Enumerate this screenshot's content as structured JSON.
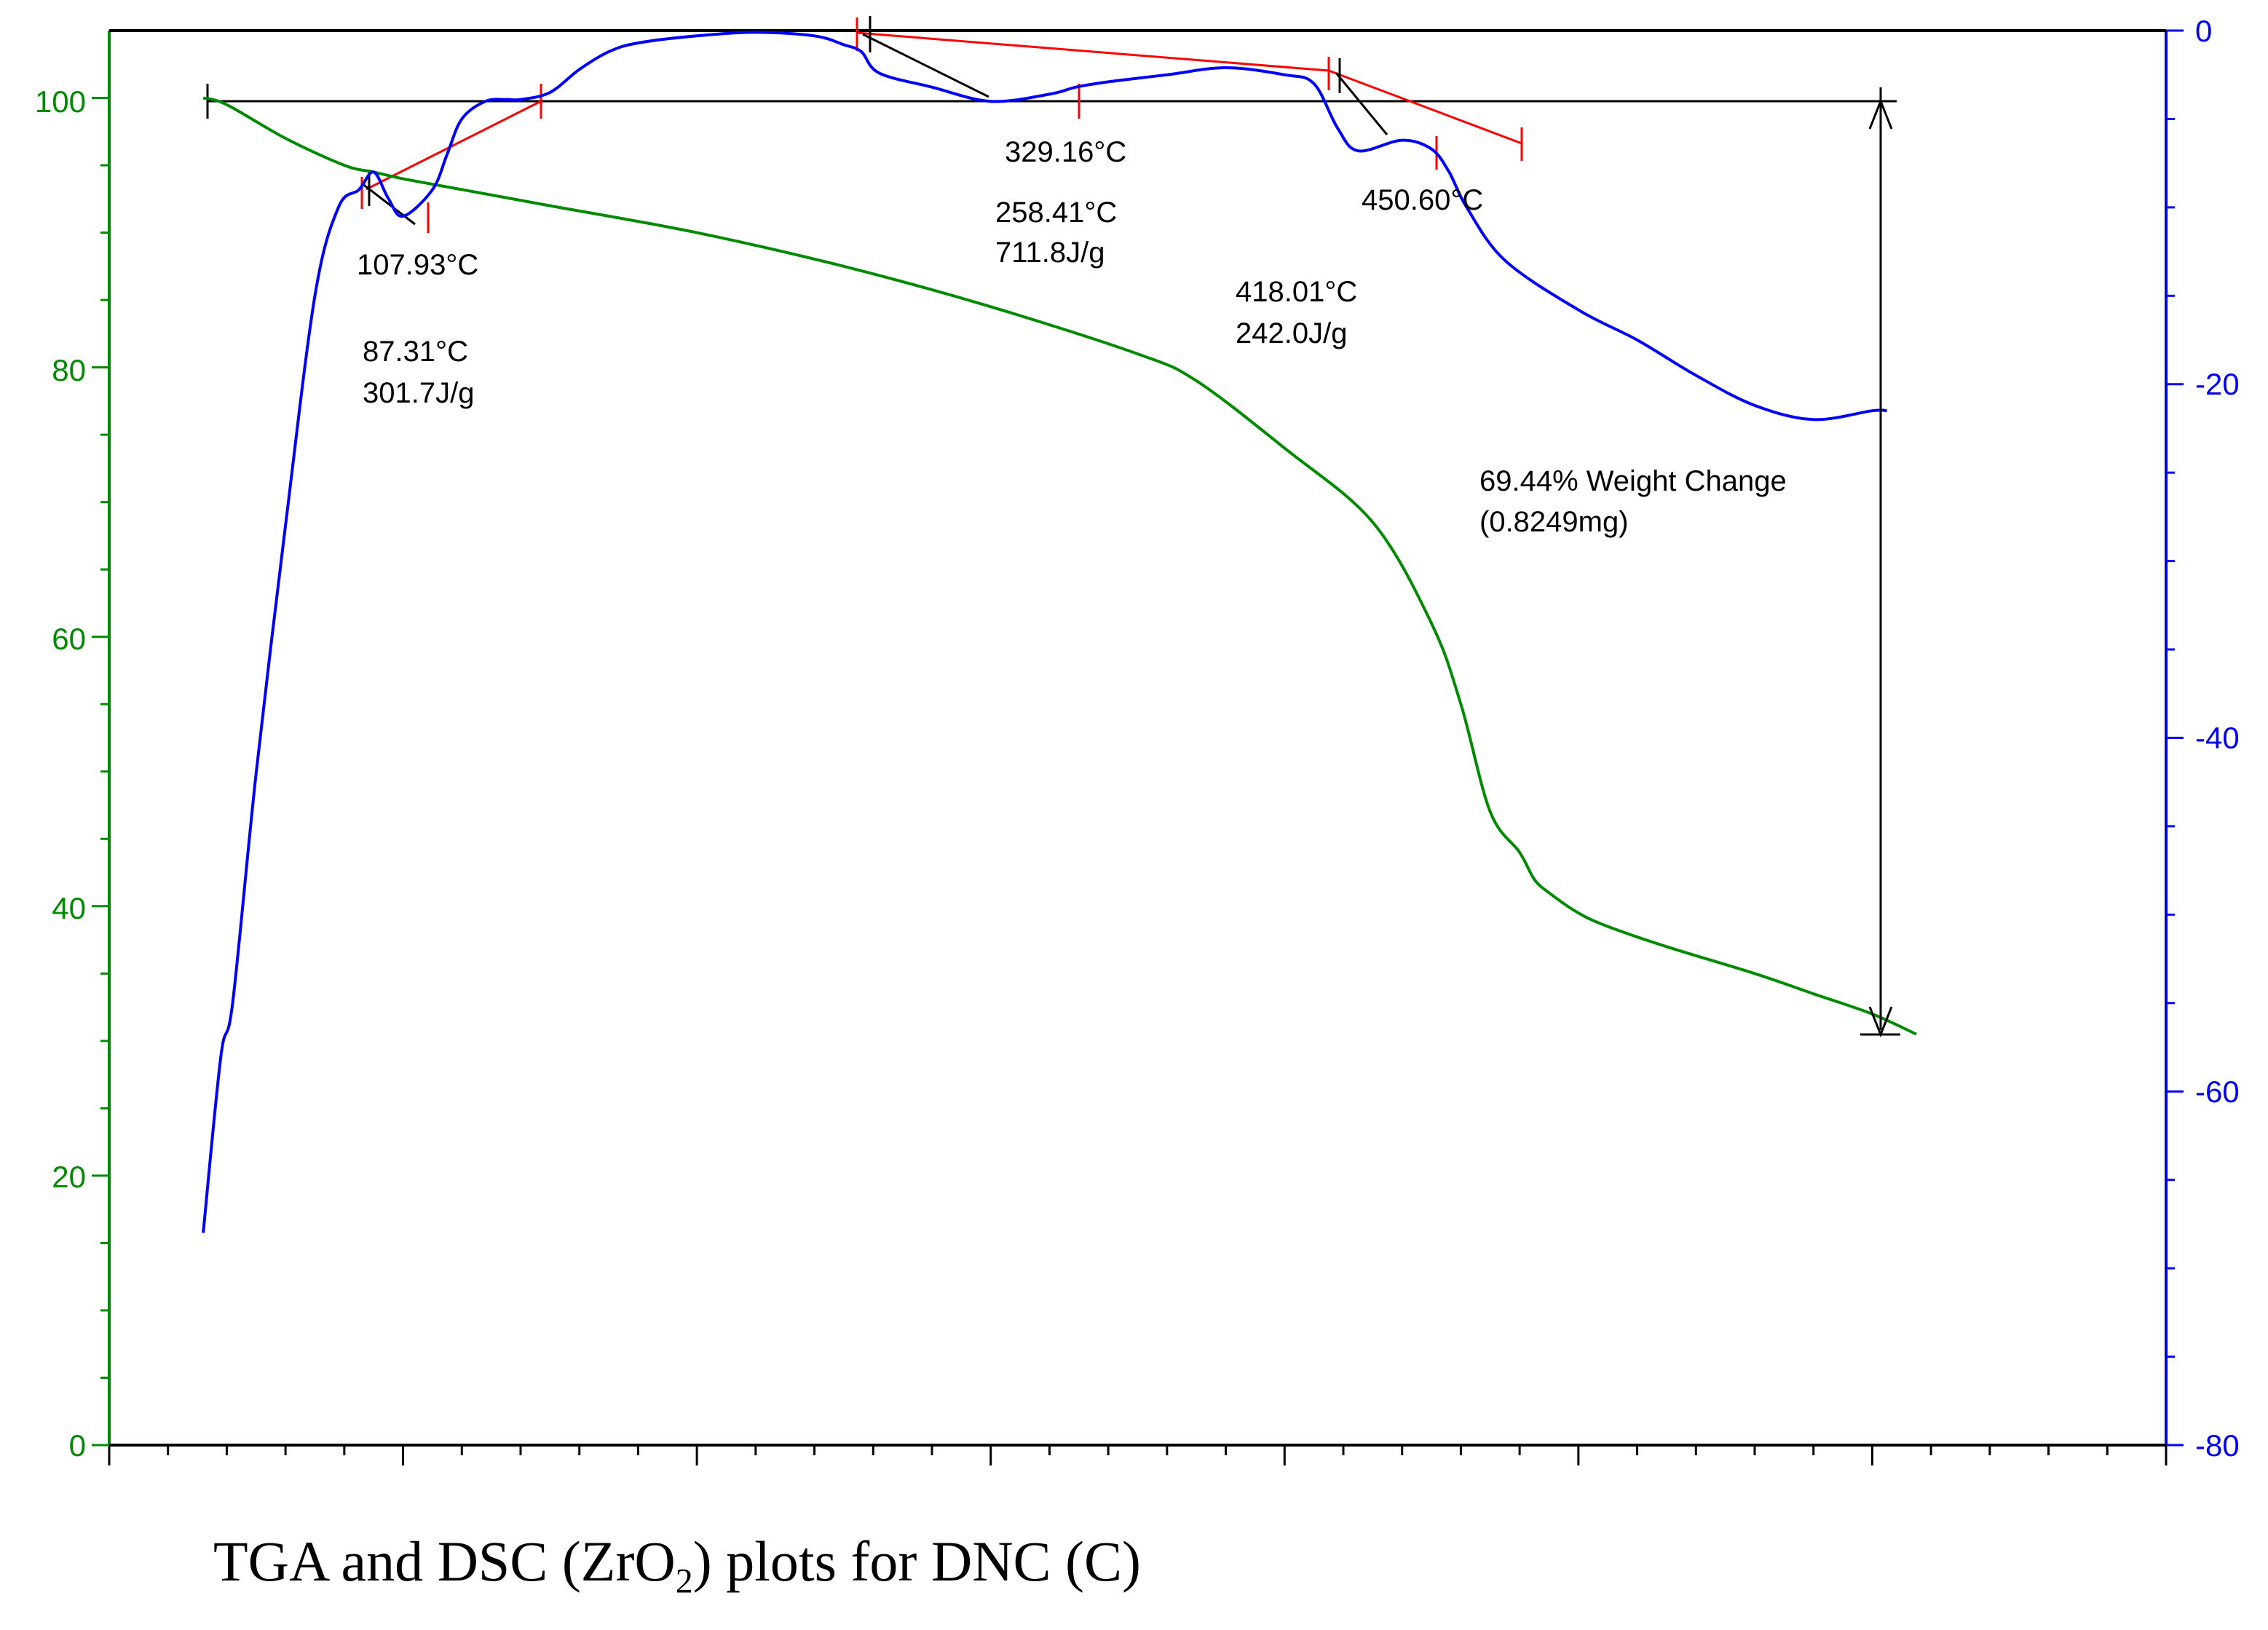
{
  "chart_data": {
    "type": "line",
    "title": "TGA and DSC (ZrO₂) plots for DNC (C)",
    "caption": {
      "prefix": "TGA and DSC (ZrO",
      "subscript": "2",
      "suffix": ") plots for DNC (C)"
    },
    "xlabel": "",
    "x_range": [
      0,
      700
    ],
    "x_ticks": [
      0,
      100,
      200,
      300,
      400,
      500,
      600,
      700
    ],
    "left_axis": {
      "label": "",
      "color": "#008a00",
      "range": [
        0,
        105
      ],
      "ticks": [
        0,
        20,
        40,
        60,
        80,
        100
      ],
      "tick_labels": [
        "0",
        "20",
        "40",
        "60",
        "80",
        "100"
      ]
    },
    "right_axis": {
      "label": "",
      "color": "#0000ff",
      "range": [
        -80,
        0
      ],
      "ticks": [
        0,
        -20,
        -40,
        -60,
        -80
      ],
      "tick_labels": [
        "0",
        "-20",
        "-40",
        "-60",
        "-80"
      ]
    },
    "series": [
      {
        "name": "TGA",
        "axis": "left",
        "color": "#008a00",
        "x": [
          32,
          40,
          60,
          80,
          90,
          100,
          120,
          150,
          200,
          250,
          300,
          350,
          370,
          400,
          430,
          450,
          460,
          470,
          480,
          485,
          490,
          500,
          510,
          530,
          560,
          580,
          600,
          615
        ],
        "values": [
          100,
          99.5,
          97,
          95,
          94.5,
          94,
          93.2,
          92,
          90,
          87.5,
          84.5,
          81,
          79,
          74,
          68.5,
          61,
          55,
          47,
          44,
          42,
          41,
          39.5,
          38.5,
          37,
          35,
          33.5,
          32,
          30.5
        ]
      },
      {
        "name": "DSC",
        "axis": "right",
        "color": "#0000ff",
        "x": [
          32,
          38,
          42,
          50,
          60,
          70,
          78,
          85,
          90,
          95,
          100,
          110,
          115,
          120,
          128,
          135,
          140,
          150,
          160,
          170,
          180,
          200,
          220,
          240,
          250,
          256,
          262,
          280,
          300,
          320,
          329,
          340,
          360,
          380,
          400,
          410,
          418,
          425,
          440,
          450,
          456,
          462,
          475,
          500,
          520,
          540,
          560,
          580,
          600,
          605
        ],
        "values": [
          -68,
          -58,
          -55,
          -42,
          -28,
          -15,
          -10,
          -9,
          -8,
          -9.5,
          -10.5,
          -9,
          -7,
          -5,
          -4,
          -3.9,
          -3.9,
          -3.5,
          -2.2,
          -1.2,
          -0.7,
          -0.3,
          -0.1,
          -0.3,
          -0.8,
          -1.2,
          -2.4,
          -3.2,
          -4.0,
          -3.6,
          -3.2,
          -2.9,
          -2.5,
          -2.1,
          -2.5,
          -3.0,
          -5.5,
          -6.8,
          -6.2,
          -6.7,
          -8.0,
          -10.0,
          -13.0,
          -15.8,
          -17.5,
          -19.5,
          -21.2,
          -22.0,
          -21.5,
          -21.5
        ]
      }
    ],
    "annotations": [
      {
        "text": "107.93°C"
      },
      {
        "text": "87.31°C"
      },
      {
        "text": "301.7J/g"
      },
      {
        "text": "329.16°C"
      },
      {
        "text": "258.41°C"
      },
      {
        "text": "711.8J/g"
      },
      {
        "text": "450.60°C"
      },
      {
        "text": "418.01°C"
      },
      {
        "text": "242.0J/g"
      },
      {
        "text": "69.44% Weight Change"
      },
      {
        "text": "(0.8249mg)"
      }
    ],
    "weight_change": {
      "from_x": 32,
      "to_x": 600,
      "y_top": 100,
      "y_bottom": 30.56
    }
  }
}
